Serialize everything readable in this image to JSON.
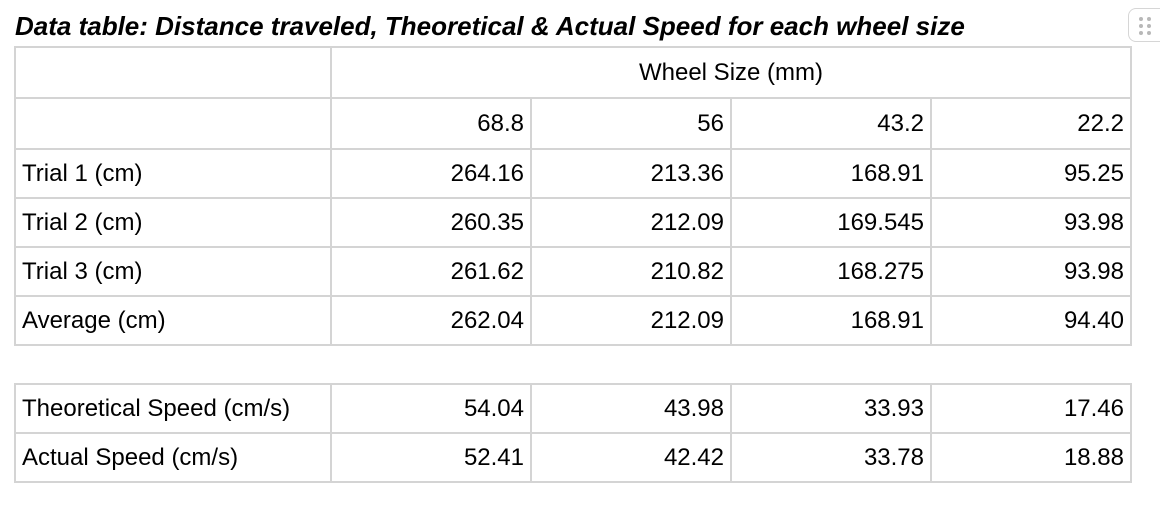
{
  "title": "Data table: Distance traveled, Theoretical & Actual Speed for each wheel size",
  "distance_table": {
    "group_header": "Wheel Size (mm)",
    "wheel_sizes": [
      "68.8",
      "56",
      "43.2",
      "22.2"
    ],
    "rows": [
      {
        "label": "Trial 1 (cm)",
        "values": [
          "264.16",
          "213.36",
          "168.91",
          "95.25"
        ]
      },
      {
        "label": "Trial 2 (cm)",
        "values": [
          "260.35",
          "212.09",
          "169.545",
          "93.98"
        ]
      },
      {
        "label": "Trial 3 (cm)",
        "values": [
          "261.62",
          "210.82",
          "168.275",
          "93.98"
        ]
      },
      {
        "label": "Average (cm)",
        "values": [
          "262.04",
          "212.09",
          "168.91",
          "94.40"
        ]
      }
    ]
  },
  "speed_table": {
    "rows": [
      {
        "label": "Theoretical Speed (cm/s)",
        "values": [
          "54.04",
          "43.98",
          "33.93",
          "17.46"
        ]
      },
      {
        "label": "Actual Speed (cm/s)",
        "values": [
          "52.41",
          "42.42",
          "33.78",
          "18.88"
        ]
      }
    ]
  },
  "colors": {
    "border": "#d4d4d4",
    "text": "#000000",
    "background": "#ffffff"
  },
  "icons": {
    "drag_handle": "drag-handle-icon"
  }
}
